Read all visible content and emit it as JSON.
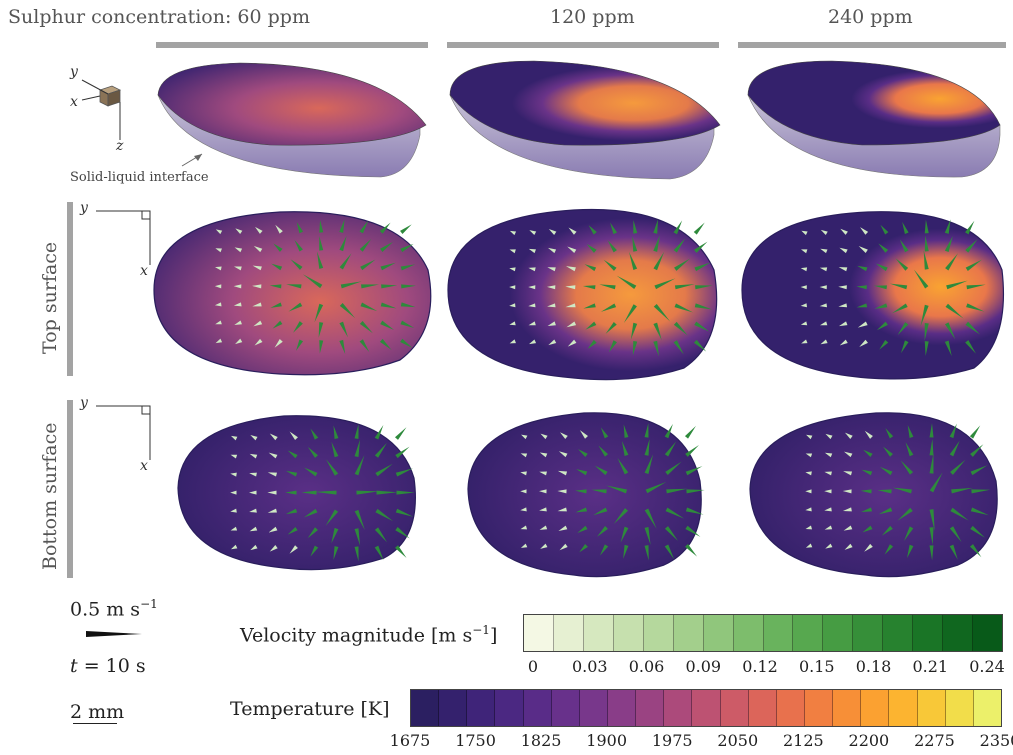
{
  "header": {
    "col1": "Sulphur concentration: 60 ppm",
    "col2": "120 ppm",
    "col3": "240 ppm"
  },
  "rows": {
    "top": "Top surface",
    "bottom": "Bottom surface"
  },
  "axes": {
    "x": "x",
    "y": "y",
    "z": "z"
  },
  "annotation": "Solid-liquid interface",
  "legend": {
    "vector_scale": "0.5 m s",
    "vector_scale_exp": "−1",
    "time": "= 10 s",
    "time_var": "t",
    "length_scale": "2 mm"
  },
  "velocity_bar": {
    "label": "Velocity magnitude [m s",
    "label_exp": "−1",
    "label_end": "]",
    "ticks": [
      "0",
      "0.03",
      "0.06",
      "0.09",
      "0.12",
      "0.15",
      "0.18",
      "0.21",
      "0.24"
    ],
    "colors": [
      "#f4f8e4",
      "#e6f0d2",
      "#d6e8bf",
      "#c6e0ae",
      "#b5d89d",
      "#a3cf8c",
      "#90c67c",
      "#7dbd6c",
      "#69b35d",
      "#57a84f",
      "#469c43",
      "#368f39",
      "#27822f",
      "#1a7526",
      "#10671f",
      "#085a19"
    ]
  },
  "temperature_bar": {
    "label": "Temperature [K]",
    "ticks": [
      "1675",
      "1750",
      "1825",
      "1900",
      "1975",
      "2050",
      "2125",
      "2200",
      "2275",
      "2350"
    ],
    "colors": [
      "#2b1f61",
      "#34216d",
      "#3f2479",
      "#4b2882",
      "#592c88",
      "#68318b",
      "#78378b",
      "#893d88",
      "#9a4382",
      "#ac4a7b",
      "#bd5272",
      "#cd5b67",
      "#dc655a",
      "#e8714d",
      "#f17f41",
      "#f78f37",
      "#fba131",
      "#fcb430",
      "#f8c838",
      "#f2dd4a",
      "#ecf06a"
    ]
  }
}
